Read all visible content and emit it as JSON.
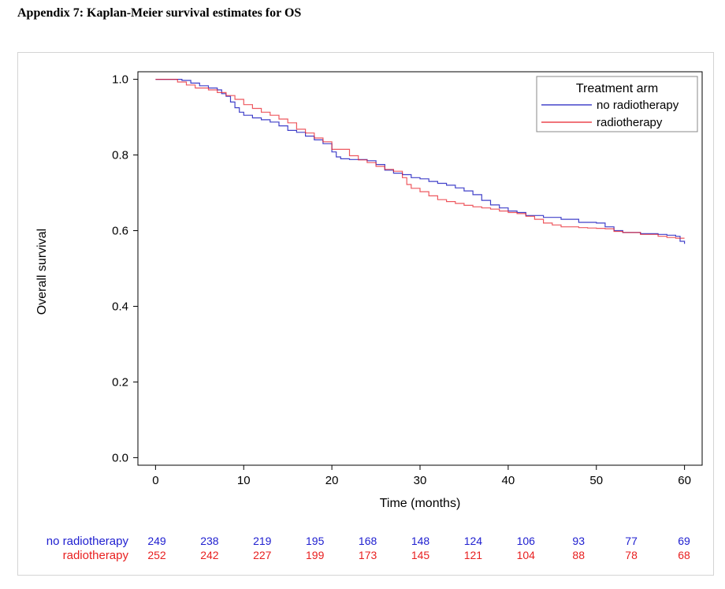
{
  "document": {
    "title": "Appendix 7: Kaplan-Meier survival estimates for OS"
  },
  "chart_data": {
    "type": "line",
    "title": "",
    "xlabel": "Time (months)",
    "ylabel": "Overall survival",
    "xlim": [
      -2,
      62
    ],
    "ylim": [
      -0.02,
      1.02
    ],
    "x_ticks": [
      "0",
      "10",
      "20",
      "30",
      "40",
      "50",
      "60"
    ],
    "y_ticks": [
      "0.0",
      "0.2",
      "0.4",
      "0.6",
      "0.8",
      "1.0"
    ],
    "grid": false,
    "legend": {
      "title": "Treatment arm",
      "position": "top-right"
    },
    "series": [
      {
        "name": "no radiotherapy",
        "color": "#1f1fbf",
        "step_x": [
          0,
          3,
          4,
          5,
          6,
          7,
          7.5,
          8,
          8.5,
          9,
          9.5,
          10,
          11,
          12,
          13,
          14,
          15,
          16,
          17,
          18,
          19,
          20,
          20.5,
          21,
          22,
          24,
          25,
          26,
          27,
          28,
          29,
          30,
          31,
          32,
          33,
          34,
          35,
          36,
          37,
          38,
          39,
          40,
          41,
          42,
          44,
          46,
          48,
          50,
          51,
          52,
          53,
          55,
          57,
          58,
          59,
          59.5,
          60
        ],
        "step_y": [
          1.0,
          0.997,
          0.99,
          0.983,
          0.977,
          0.972,
          0.962,
          0.955,
          0.94,
          0.925,
          0.913,
          0.905,
          0.898,
          0.893,
          0.887,
          0.877,
          0.865,
          0.86,
          0.85,
          0.84,
          0.83,
          0.808,
          0.795,
          0.79,
          0.788,
          0.785,
          0.775,
          0.76,
          0.752,
          0.748,
          0.74,
          0.737,
          0.73,
          0.725,
          0.72,
          0.713,
          0.705,
          0.695,
          0.68,
          0.668,
          0.66,
          0.652,
          0.648,
          0.64,
          0.635,
          0.63,
          0.622,
          0.62,
          0.61,
          0.6,
          0.595,
          0.592,
          0.59,
          0.588,
          0.585,
          0.572,
          0.565
        ]
      },
      {
        "name": "radiotherapy",
        "color": "#e8202a",
        "step_x": [
          0,
          2.5,
          3.5,
          4.5,
          6,
          7,
          8,
          9,
          10,
          11,
          12,
          13,
          14,
          15,
          16,
          17,
          18,
          19,
          20,
          22,
          23,
          24,
          25,
          26,
          27,
          28,
          28.5,
          29,
          30,
          31,
          32,
          33,
          34,
          35,
          36,
          37,
          38,
          39,
          40,
          41,
          42,
          43,
          44,
          45,
          46,
          48,
          49,
          50,
          51,
          52,
          53,
          55,
          57,
          58,
          59,
          60
        ],
        "step_y": [
          1.0,
          0.993,
          0.985,
          0.977,
          0.972,
          0.965,
          0.957,
          0.947,
          0.933,
          0.923,
          0.913,
          0.905,
          0.895,
          0.885,
          0.868,
          0.858,
          0.845,
          0.835,
          0.815,
          0.798,
          0.787,
          0.78,
          0.77,
          0.762,
          0.757,
          0.74,
          0.722,
          0.712,
          0.703,
          0.692,
          0.682,
          0.677,
          0.672,
          0.667,
          0.663,
          0.66,
          0.657,
          0.652,
          0.648,
          0.645,
          0.638,
          0.63,
          0.62,
          0.615,
          0.61,
          0.608,
          0.607,
          0.606,
          0.605,
          0.598,
          0.595,
          0.59,
          0.585,
          0.582,
          0.58,
          0.58
        ]
      }
    ]
  },
  "risk_table": {
    "times": [
      0,
      6,
      12,
      18,
      24,
      30,
      36,
      42,
      48,
      54,
      60
    ],
    "rows": [
      {
        "name": "no radiotherapy",
        "color": "#2020d0",
        "counts": [
          "249",
          "238",
          "219",
          "195",
          "168",
          "148",
          "124",
          "106",
          "93",
          "77",
          "69"
        ]
      },
      {
        "name": "radiotherapy",
        "color": "#e82020",
        "counts": [
          "252",
          "242",
          "227",
          "199",
          "173",
          "145",
          "121",
          "104",
          "88",
          "78",
          "68"
        ]
      }
    ]
  }
}
